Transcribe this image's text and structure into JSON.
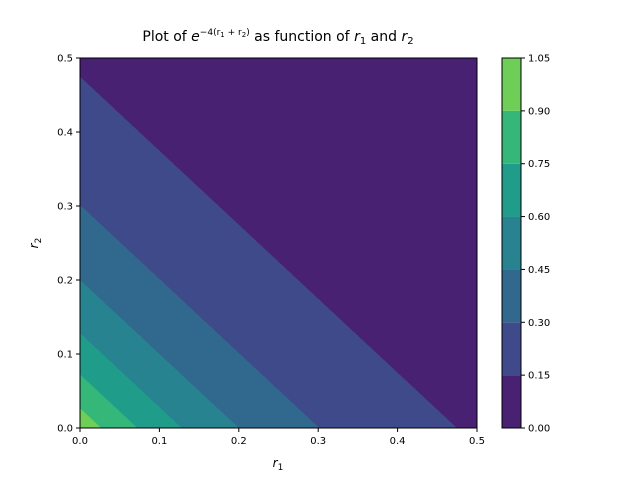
{
  "chart_data": {
    "type": "contourf",
    "function": "exp(-4*(r1+r2))",
    "title": {
      "prefix": "Plot of ",
      "base": "e",
      "exponent": "−4(r",
      "exp_sub1": "1",
      "exp_mid": " + r",
      "exp_sub2": "2",
      "exp_end": ")",
      "middle": " as function of ",
      "var1": "r",
      "var1_sub": "1",
      "and": " and ",
      "var2": "r",
      "var2_sub": "2"
    },
    "xlabel": {
      "base": "r",
      "sub": "1"
    },
    "ylabel": {
      "base": "r",
      "sub": "2"
    },
    "xlim": [
      0.0,
      0.5
    ],
    "ylim": [
      0.0,
      0.5
    ],
    "xticks": [
      0.0,
      0.1,
      0.2,
      0.3,
      0.4,
      0.5
    ],
    "yticks": [
      0.0,
      0.1,
      0.2,
      0.3,
      0.4,
      0.5
    ],
    "xtick_labels": [
      "0.0",
      "0.1",
      "0.2",
      "0.3",
      "0.4",
      "0.5"
    ],
    "ytick_labels": [
      "0.0",
      "0.1",
      "0.2",
      "0.3",
      "0.4",
      "0.5"
    ],
    "levels": [
      0.0,
      0.15,
      0.3,
      0.45,
      0.6,
      0.75,
      0.9,
      1.05
    ],
    "level_labels": [
      "0.00",
      "0.15",
      "0.30",
      "0.45",
      "0.60",
      "0.75",
      "0.90",
      "1.05"
    ],
    "colors": [
      "#482173",
      "#3e4a89",
      "#31688e",
      "#26838f",
      "#1f9d8a",
      "#35b779",
      "#6ece58",
      "#d2e21b"
    ],
    "colorbar": true,
    "grid": false
  }
}
